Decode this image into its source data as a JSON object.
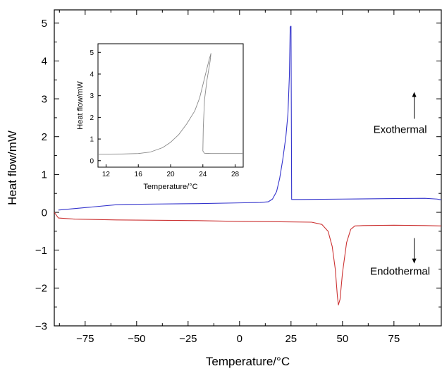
{
  "chart_data": [
    {
      "type": "line",
      "xlabel": "Temperature/°C",
      "ylabel": "Heat flow/mW",
      "xlim": [
        -90,
        98
      ],
      "ylim": [
        -3,
        5.35
      ],
      "xticks": [
        -75,
        -50,
        -25,
        0,
        25,
        50,
        75
      ],
      "yticks": [
        -3,
        -2,
        -1,
        0,
        1,
        2,
        3,
        4,
        5
      ],
      "grid": false,
      "annotations": [
        {
          "text": "Exothermal",
          "arrow": "up",
          "x": 78,
          "y": 2.1
        },
        {
          "text": "Endothermal",
          "arrow": "down",
          "x": 78,
          "y": -1.65
        }
      ],
      "series": [
        {
          "color": "#3333cc",
          "x": [
            -88,
            -80,
            -70,
            -60,
            -55,
            -40,
            -20,
            0,
            10,
            14,
            16,
            18,
            19.5,
            21,
            22.5,
            23.5,
            24.2,
            24.6,
            25,
            25.3,
            30,
            50,
            70,
            90,
            96,
            98
          ],
          "y": [
            0.06,
            0.1,
            0.15,
            0.2,
            0.21,
            0.22,
            0.23,
            0.25,
            0.26,
            0.28,
            0.35,
            0.55,
            0.9,
            1.4,
            2.0,
            2.6,
            3.6,
            4.9,
            4.92,
            0.34,
            0.34,
            0.35,
            0.36,
            0.37,
            0.35,
            0.33
          ]
        },
        {
          "color": "#cc3333",
          "x": [
            -90,
            -88,
            -80,
            -60,
            -40,
            -20,
            0,
            20,
            35,
            40,
            43,
            45,
            46.5,
            47.5,
            48,
            48.8,
            50,
            52,
            54,
            56,
            60,
            75,
            90,
            98
          ],
          "y": [
            0.0,
            -0.15,
            -0.18,
            -0.2,
            -0.21,
            -0.22,
            -0.24,
            -0.25,
            -0.26,
            -0.32,
            -0.5,
            -0.9,
            -1.5,
            -2.2,
            -2.45,
            -2.3,
            -1.6,
            -0.8,
            -0.45,
            -0.36,
            -0.35,
            -0.34,
            -0.35,
            -0.36
          ]
        }
      ]
    },
    {
      "type": "line",
      "inset": true,
      "xlabel": "Temperature/°C",
      "ylabel": "Heat flow/mW",
      "xlim": [
        11,
        29
      ],
      "ylim": [
        -0.3,
        5.4
      ],
      "xticks": [
        12,
        16,
        20,
        24,
        28
      ],
      "yticks": [
        0,
        1,
        2,
        3,
        4,
        5
      ],
      "grid": false,
      "series": [
        {
          "color": "#888888",
          "x": [
            11,
            14,
            16,
            17.5,
            19,
            20,
            21,
            22,
            23,
            23.6,
            24,
            24.4,
            24.8,
            25,
            24.9,
            24.5,
            24.2,
            24.05,
            24.0,
            24.2,
            25,
            29
          ],
          "y": [
            0.3,
            0.31,
            0.33,
            0.4,
            0.6,
            0.85,
            1.2,
            1.7,
            2.3,
            2.9,
            3.5,
            4.1,
            4.7,
            4.95,
            4.6,
            3.7,
            2.8,
            1.5,
            0.45,
            0.34,
            0.33,
            0.33
          ]
        }
      ]
    }
  ]
}
